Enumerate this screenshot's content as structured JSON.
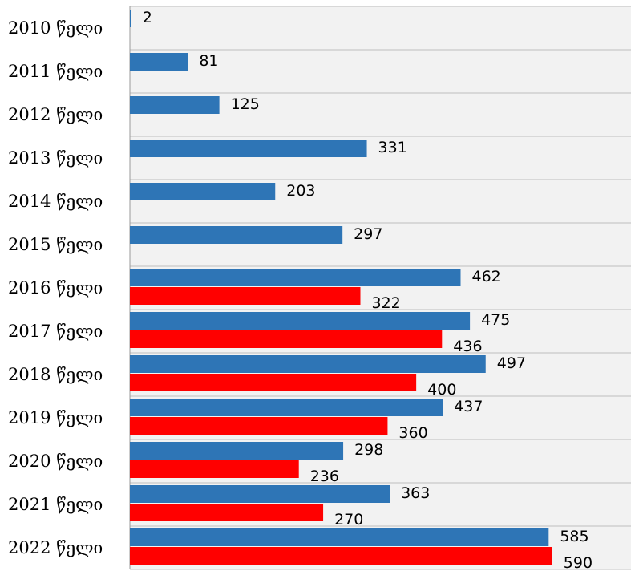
{
  "chart_data": {
    "type": "bar",
    "orientation": "horizontal",
    "categories": [
      "2010 წელი",
      "2011 წელი",
      "2012 წელი",
      "2013 წელი",
      "2014 წელი",
      "2015 წელი",
      "2016 წელი",
      "2017 წელი",
      "2018 წელი",
      "2019 წელი",
      "2020 წელი",
      "2021 წელი",
      "2022 წელი"
    ],
    "series": [
      {
        "color": "#2E75B6",
        "values": [
          2,
          81,
          125,
          331,
          203,
          297,
          462,
          475,
          497,
          437,
          298,
          363,
          585
        ]
      },
      {
        "color": "#FF0000",
        "values": [
          null,
          null,
          null,
          null,
          null,
          null,
          322,
          436,
          400,
          360,
          236,
          270,
          590
        ]
      }
    ],
    "xlim": [
      0,
      700
    ],
    "grid": true,
    "background": "#F2F2F2",
    "legend": "none",
    "title": "",
    "xlabel": "",
    "ylabel": ""
  }
}
